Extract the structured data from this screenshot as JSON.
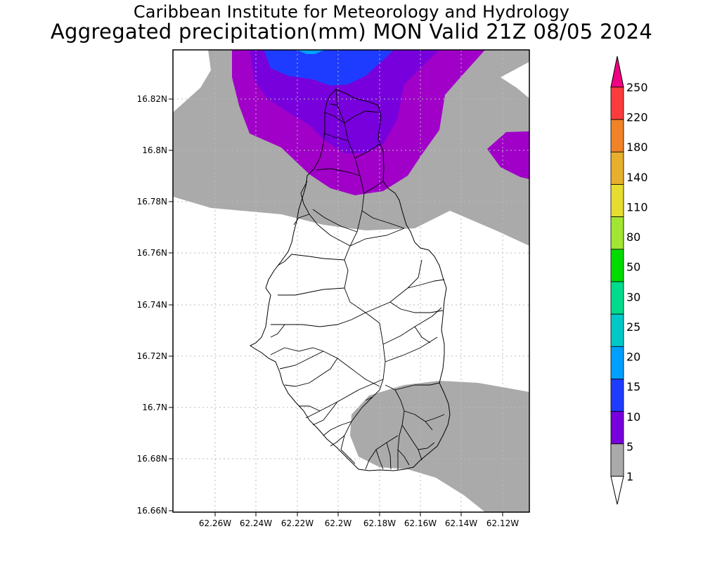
{
  "header": {
    "line1": "Caribbean Institute for Meteorology and Hydrology",
    "line2": "Aggregated precipitation(mm) MON Valid 21Z 08/05 2024"
  },
  "map": {
    "lat_ticks": [
      "16.82N",
      "16.8N",
      "16.78N",
      "16.76N",
      "16.74N",
      "16.72N",
      "16.7N",
      "16.68N",
      "16.66N"
    ],
    "lon_ticks": [
      "62.26W",
      "62.24W",
      "62.22W",
      "62.2W",
      "62.18W",
      "62.16W",
      "62.14W",
      "62.12W"
    ]
  },
  "colorbar": {
    "unit": "mm",
    "levels": [
      "1",
      "5",
      "10",
      "15",
      "20",
      "25",
      "30",
      "50",
      "80",
      "110",
      "140",
      "180",
      "220",
      "250"
    ],
    "colors": [
      "#aaaaaa",
      "#a000c8",
      "#7800dc",
      "#1e3cff",
      "#00a0ff",
      "#00c8c8",
      "#00dc8c",
      "#00dc00",
      "#a0e632",
      "#e6dc32",
      "#e6af2d",
      "#f08228",
      "#fa3c3c",
      "#f00082"
    ]
  }
}
